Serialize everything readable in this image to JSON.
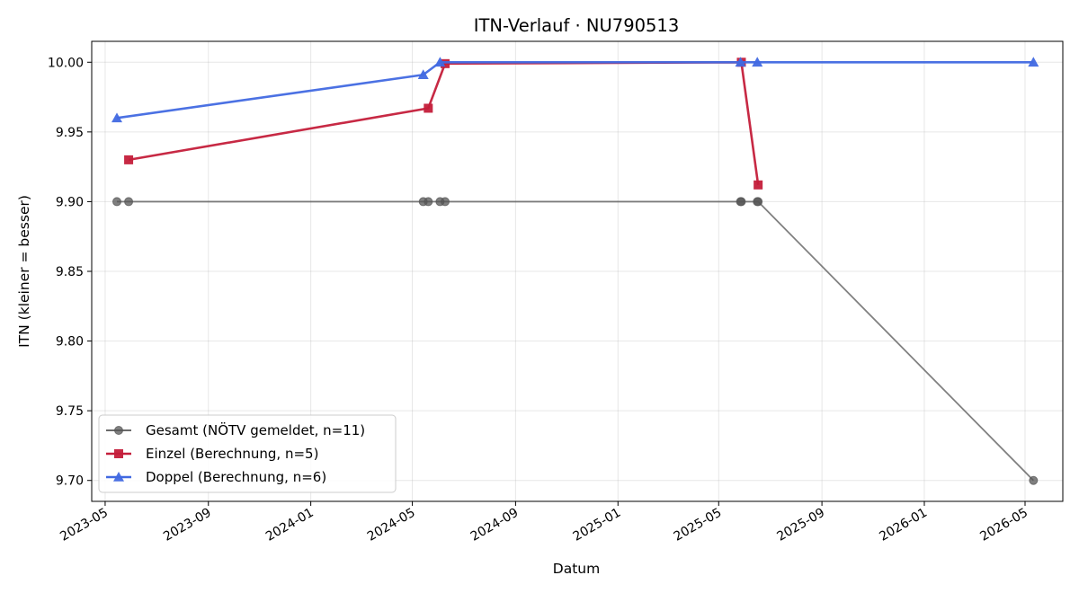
{
  "chart_data": {
    "type": "line",
    "title": "ITN-Verlauf · NU790513",
    "xlabel": "Datum",
    "ylabel": "ITN  (kleiner = besser)",
    "x_type": "date",
    "xlim": [
      "2023-04-15",
      "2026-06-15"
    ],
    "ylim": [
      9.685,
      10.015
    ],
    "x_ticks": [
      "2023-05-01",
      "2023-09-01",
      "2024-01-01",
      "2024-05-01",
      "2024-09-01",
      "2025-01-01",
      "2025-05-01",
      "2025-09-01",
      "2026-01-01",
      "2026-05-01"
    ],
    "x_tick_labels": [
      "2023-05",
      "2023-09",
      "2024-01",
      "2024-05",
      "2024-09",
      "2025-01",
      "2025-05",
      "2025-09",
      "2026-01",
      "2026-05"
    ],
    "y_ticks": [
      9.7,
      9.75,
      9.8,
      9.85,
      9.9,
      9.95,
      10.0
    ],
    "y_tick_labels": [
      "9.70",
      "9.75",
      "9.80",
      "9.85",
      "9.90",
      "9.95",
      "10.00"
    ],
    "grid": true,
    "legend_position": "lower-left",
    "series": [
      {
        "name": "Gesamt (NÖTV gemeldet, n=11)",
        "color": "#555555",
        "marker": "circle",
        "x": [
          "2023-05-15",
          "2023-05-29",
          "2024-05-14",
          "2024-05-20",
          "2024-06-03",
          "2024-06-09",
          "2025-05-27",
          "2025-05-28",
          "2025-06-16",
          "2025-06-17",
          "2026-05-11"
        ],
        "y": [
          9.9,
          9.9,
          9.9,
          9.9,
          9.9,
          9.9,
          9.9,
          9.9,
          9.9,
          9.9,
          9.7
        ]
      },
      {
        "name": "Einzel (Berechnung, n=5)",
        "color": "#c41e3a",
        "marker": "square",
        "x": [
          "2023-05-29",
          "2024-05-20",
          "2024-06-09",
          "2025-05-28",
          "2025-06-17"
        ],
        "y": [
          9.93,
          9.967,
          9.999,
          10.0,
          9.912
        ]
      },
      {
        "name": "Doppel (Berechnung, n=6)",
        "color": "#4169e1",
        "marker": "triangle",
        "x": [
          "2023-05-15",
          "2024-05-14",
          "2024-06-03",
          "2025-05-27",
          "2025-06-16",
          "2026-05-11"
        ],
        "y": [
          9.96,
          9.991,
          10.0,
          10.0,
          10.0,
          10.0
        ]
      }
    ]
  }
}
